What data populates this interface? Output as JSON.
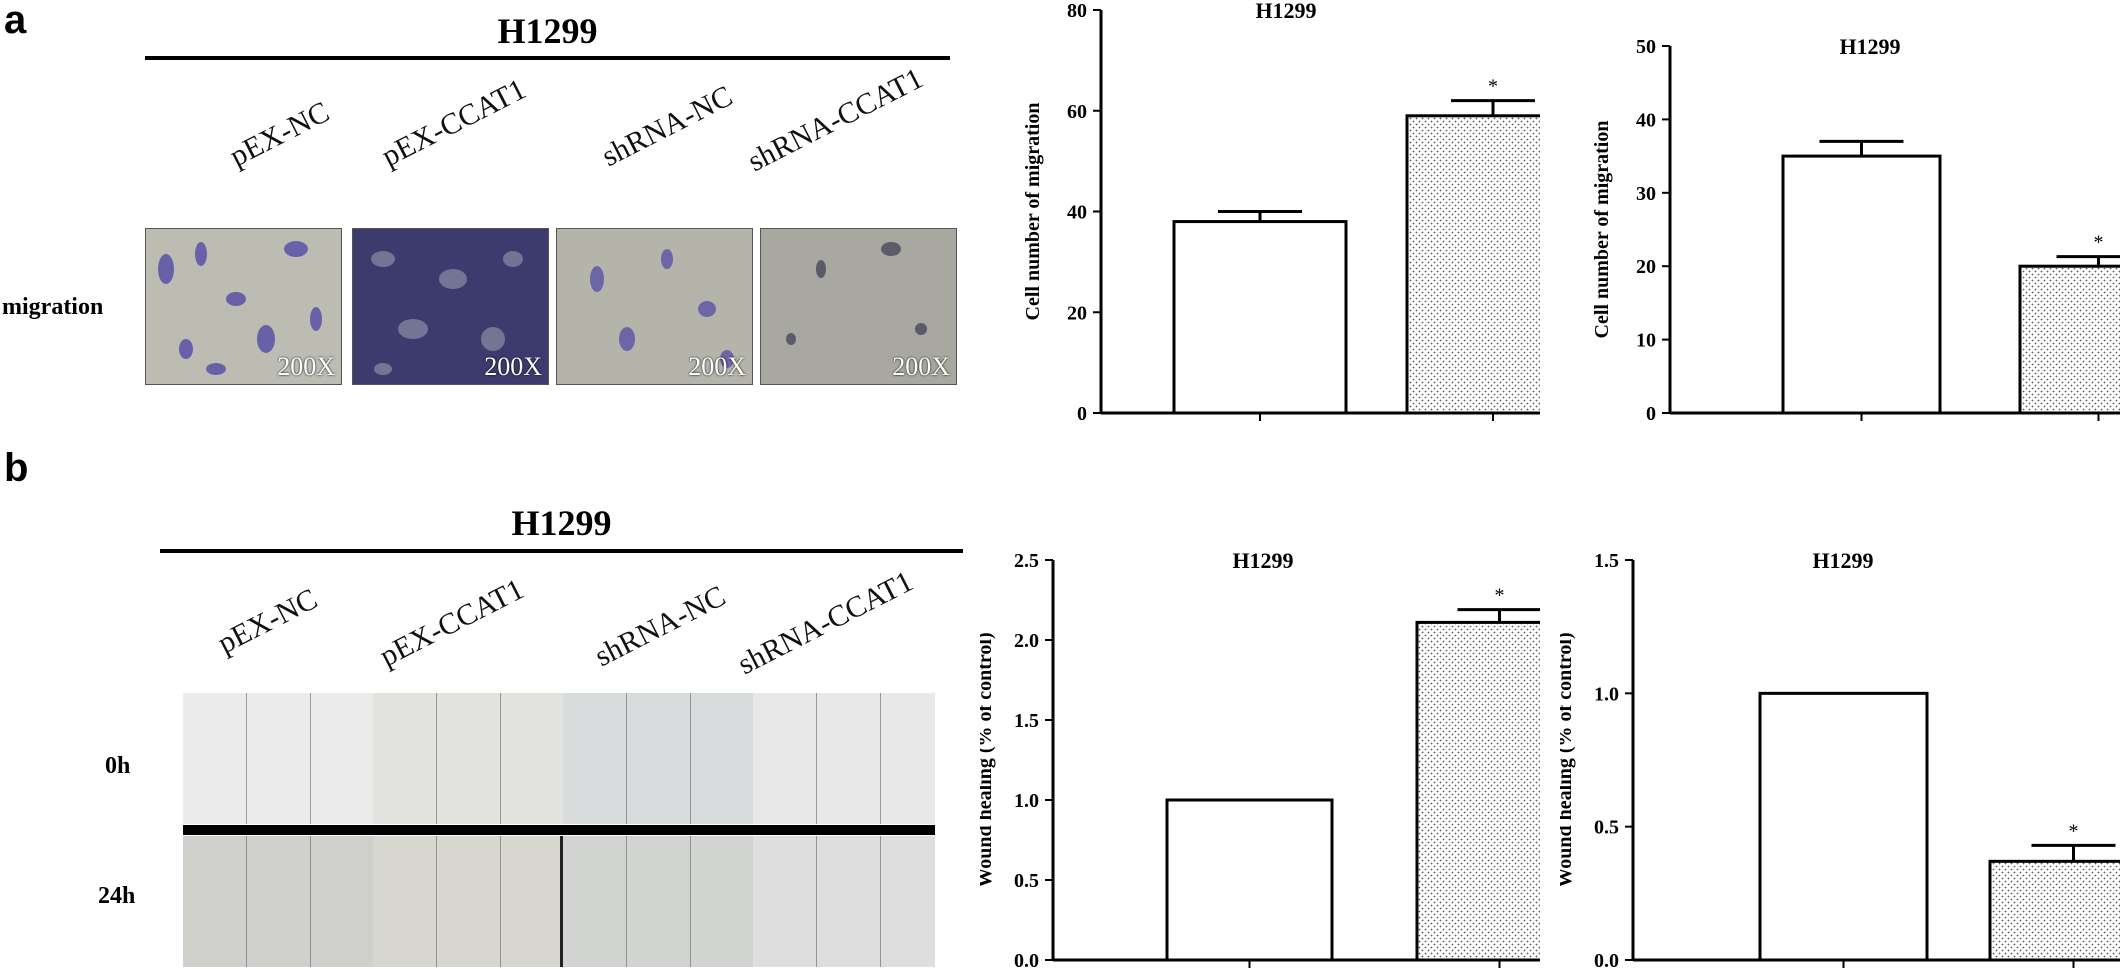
{
  "panels": [
    {
      "letter": "a",
      "heading": "H1299",
      "columns": [
        "pEX-NC",
        "pEX-CCAT1",
        "shRNA-NC",
        "shRNA-CCAT1"
      ],
      "row_label": "migration",
      "magnification": [
        "200X",
        "200X",
        "200X",
        "200X"
      ]
    },
    {
      "letter": "b",
      "heading": "H1299",
      "columns": [
        "pEX-NC",
        "pEX-CCAT1",
        "shRNA-NC",
        "shRNA-CCAT1"
      ],
      "rows": [
        "0h",
        "24h"
      ]
    }
  ],
  "colors": {
    "stain": "#4a4290",
    "field": "#b8b8ae",
    "bar_fill": "#ffffff",
    "axis": "#000000"
  },
  "chart_data": [
    {
      "type": "bar",
      "title": "H1299",
      "xlabel": "",
      "ylabel": "Cell number of migration",
      "ylim": [
        0,
        80
      ],
      "yticks": [
        0,
        20,
        40,
        60,
        80
      ],
      "values": [
        38,
        59
      ],
      "errors": [
        2,
        3
      ],
      "significance": [
        "",
        "*"
      ],
      "fills": [
        "plain",
        "dotted"
      ]
    },
    {
      "type": "bar",
      "title": "H1299",
      "xlabel": "",
      "ylabel": "Cell number of migration",
      "ylim": [
        0,
        50
      ],
      "yticks": [
        0,
        10,
        20,
        30,
        40,
        50
      ],
      "values": [
        35,
        20
      ],
      "errors": [
        2,
        1.3
      ],
      "significance": [
        "",
        "*"
      ],
      "fills": [
        "plain",
        "dotted"
      ]
    },
    {
      "type": "bar",
      "title": "H1299",
      "xlabel": "",
      "ylabel": "Wound healing (% of control)",
      "ylim": [
        0,
        2.5
      ],
      "yticks": [
        0.0,
        0.5,
        1.0,
        1.5,
        2.0,
        2.5
      ],
      "tick_decimals": 1,
      "values": [
        1.0,
        2.11
      ],
      "errors": [
        0,
        0.08
      ],
      "significance": [
        "",
        "*"
      ],
      "fills": [
        "plain",
        "dotted"
      ]
    },
    {
      "type": "bar",
      "title": "H1299",
      "xlabel": "",
      "ylabel": "Wound healing (% of control)",
      "ylim": [
        0,
        1.5
      ],
      "yticks": [
        0.0,
        0.5,
        1.0,
        1.5
      ],
      "tick_decimals": 1,
      "values": [
        1.0,
        0.37
      ],
      "errors": [
        0,
        0.06
      ],
      "significance": [
        "",
        "*"
      ],
      "fills": [
        "plain",
        "dotted"
      ]
    }
  ]
}
